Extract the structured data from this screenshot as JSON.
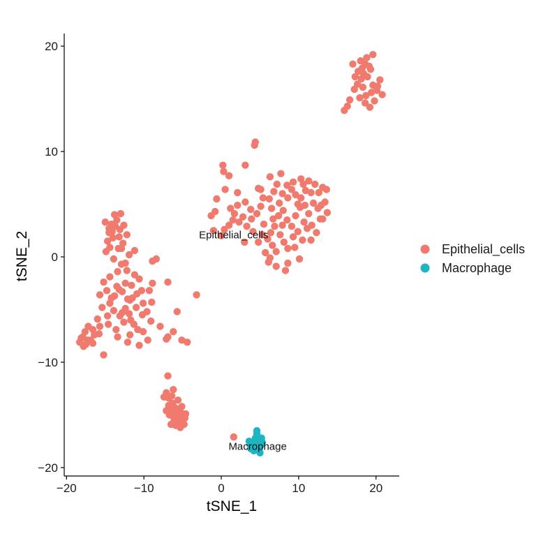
{
  "chart_data": {
    "type": "scatter",
    "title": "",
    "xlabel": "tSNE_1",
    "ylabel": "tSNE_2",
    "xlim": [
      -20.3,
      23
    ],
    "ylim": [
      -20.8,
      21.2
    ],
    "xticks": [
      -20,
      -10,
      0,
      10,
      20
    ],
    "yticks": [
      -20,
      -10,
      0,
      10,
      20
    ],
    "xtick_labels": [
      "−20",
      "−10",
      "0",
      "10",
      "20"
    ],
    "ytick_labels": [
      "−20",
      "−10",
      "0",
      "10",
      "20"
    ],
    "grid": false,
    "legend_position": "right",
    "series": [
      {
        "name": "Epithelial_cells",
        "color": "#F07A6E",
        "points": [
          [
            15.9,
            13.9
          ],
          [
            16.3,
            14.3
          ],
          [
            16.6,
            14.9
          ],
          [
            17.2,
            15.9
          ],
          [
            17.6,
            16.4
          ],
          [
            18.1,
            16.9
          ],
          [
            18.4,
            17.4
          ],
          [
            18.9,
            17.1
          ],
          [
            19.3,
            17.8
          ],
          [
            18.6,
            18.3
          ],
          [
            18.0,
            18.6
          ],
          [
            18.8,
            18.9
          ],
          [
            19.6,
            19.2
          ],
          [
            19.1,
            18.1
          ],
          [
            17.7,
            17.6
          ],
          [
            18.3,
            16.1
          ],
          [
            18.7,
            15.3
          ],
          [
            19.4,
            15.6
          ],
          [
            20.1,
            15.8
          ],
          [
            20.5,
            16.8
          ],
          [
            20.8,
            15.4
          ],
          [
            19.8,
            14.8
          ],
          [
            19.2,
            14.2
          ],
          [
            18.6,
            14.6
          ],
          [
            17.9,
            15.1
          ],
          [
            17.3,
            17.1
          ],
          [
            18.2,
            17.9
          ],
          [
            19.6,
            16.3
          ],
          [
            17.0,
            18.3
          ],
          [
            20.2,
            16.2
          ],
          [
            -1.0,
            2.5
          ],
          [
            0.0,
            2.0
          ],
          [
            0.4,
            2.6
          ],
          [
            1.0,
            3.0
          ],
          [
            1.5,
            3.5
          ],
          [
            -1.3,
            3.9
          ],
          [
            -0.8,
            4.3
          ],
          [
            1.2,
            4.6
          ],
          [
            2.1,
            4.9
          ],
          [
            3.1,
            5.2
          ],
          [
            3.8,
            4.5
          ],
          [
            2.8,
            3.8
          ],
          [
            2.3,
            3.3
          ],
          [
            1.7,
            4.1
          ],
          [
            -0.6,
            5.5
          ],
          [
            0.5,
            6.4
          ],
          [
            2.1,
            6.1
          ],
          [
            0.2,
            8.7
          ],
          [
            0.3,
            8.1
          ],
          [
            1.0,
            7.7
          ],
          [
            3.1,
            8.7
          ],
          [
            4.3,
            10.6
          ],
          [
            4.4,
            10.9
          ],
          [
            5.1,
            6.4
          ],
          [
            5.4,
            5.6
          ],
          [
            6.2,
            5.5
          ],
          [
            6.8,
            6.2
          ],
          [
            7.2,
            6.9
          ],
          [
            7.7,
            7.9
          ],
          [
            6.3,
            7.6
          ],
          [
            8.5,
            6.8
          ],
          [
            9.1,
            6.4
          ],
          [
            9.6,
            5.9
          ],
          [
            10.3,
            5.6
          ],
          [
            10.9,
            6.3
          ],
          [
            11.3,
            7.2
          ],
          [
            12.1,
            6.9
          ],
          [
            12.6,
            6.1
          ],
          [
            13.1,
            6.6
          ],
          [
            13.4,
            5.2
          ],
          [
            13.7,
            4.2
          ],
          [
            13.1,
            3.6
          ],
          [
            12.5,
            4.6
          ],
          [
            11.9,
            5.1
          ],
          [
            11.3,
            4.1
          ],
          [
            10.7,
            3.3
          ],
          [
            10.2,
            4.7
          ],
          [
            9.6,
            3.9
          ],
          [
            9.1,
            2.9
          ],
          [
            8.5,
            3.5
          ],
          [
            8.0,
            4.4
          ],
          [
            7.4,
            3.9
          ],
          [
            6.9,
            2.9
          ],
          [
            6.4,
            2.3
          ],
          [
            6.0,
            1.7
          ],
          [
            6.6,
            1.1
          ],
          [
            7.1,
            0.5
          ],
          [
            6.3,
            -0.1
          ],
          [
            7.6,
            2.1
          ],
          [
            8.1,
            1.4
          ],
          [
            8.6,
            0.8
          ],
          [
            9.3,
            1.9
          ],
          [
            9.9,
            2.4
          ],
          [
            10.5,
            1.6
          ],
          [
            11.1,
            2.7
          ],
          [
            11.7,
            3.0
          ],
          [
            12.3,
            2.3
          ],
          [
            9.5,
            0.9
          ],
          [
            10.1,
            -0.2
          ],
          [
            8.6,
            -0.6
          ],
          [
            7.1,
            -0.9
          ],
          [
            8.3,
            -1.3
          ],
          [
            5.3,
            2.1
          ],
          [
            4.8,
            1.4
          ],
          [
            5.7,
            0.4
          ],
          [
            6.1,
            -0.5
          ],
          [
            5.5,
            3.1
          ],
          [
            6.7,
            3.6
          ],
          [
            7.5,
            5.1
          ],
          [
            8.6,
            5.6
          ],
          [
            9.3,
            7.1
          ],
          [
            10.6,
            6.9
          ],
          [
            11.6,
            6.1
          ],
          [
            12.9,
            4.9
          ],
          [
            3.3,
            2.9
          ],
          [
            3.9,
            3.6
          ],
          [
            4.6,
            4.1
          ],
          [
            5.1,
            4.8
          ],
          [
            7.9,
            6.0
          ],
          [
            10.8,
            4.9
          ],
          [
            4.1,
            2.4
          ],
          [
            6.5,
            4.6
          ],
          [
            11.6,
            1.6
          ],
          [
            12.8,
            3.6
          ],
          [
            3.0,
            1.4
          ],
          [
            9.9,
            5.0
          ],
          [
            10.3,
            7.4
          ],
          [
            13.6,
            6.4
          ],
          [
            4.8,
            6.5
          ],
          [
            7.9,
            3.0
          ],
          [
            -14.0,
            1.8
          ],
          [
            -14.5,
            2.3
          ],
          [
            -13.7,
            2.9
          ],
          [
            -13.1,
            2.6
          ],
          [
            -14.7,
            1.5
          ],
          [
            -13.5,
            3.5
          ],
          [
            -14.2,
            3.1
          ],
          [
            -13.0,
            4.1
          ],
          [
            -12.2,
            2.1
          ],
          [
            -12.7,
            1.3
          ],
          [
            -13.3,
            0.8
          ],
          [
            -14.9,
            0.5
          ],
          [
            -13.9,
            -0.2
          ],
          [
            -12.9,
            -0.7
          ],
          [
            -13.4,
            -1.4
          ],
          [
            -14.4,
            -1.9
          ],
          [
            -15.2,
            -2.4
          ],
          [
            -14.8,
            -3.2
          ],
          [
            -13.8,
            -3.7
          ],
          [
            -12.8,
            -3.3
          ],
          [
            -12.4,
            -2.5
          ],
          [
            -11.6,
            -2.7
          ],
          [
            -11.2,
            -1.7
          ],
          [
            -10.6,
            -2.1
          ],
          [
            -10.3,
            -3.2
          ],
          [
            -11.8,
            -4.1
          ],
          [
            -12.4,
            -4.9
          ],
          [
            -13.1,
            -5.6
          ],
          [
            -13.9,
            -5.1
          ],
          [
            -14.4,
            -4.4
          ],
          [
            -15.4,
            -4.8
          ],
          [
            -16.0,
            -5.9
          ],
          [
            -15.7,
            -6.6
          ],
          [
            -16.6,
            -6.9
          ],
          [
            -17.2,
            -6.6
          ],
          [
            -17.6,
            -7.1
          ],
          [
            -17.9,
            -7.6
          ],
          [
            -18.3,
            -8.1
          ],
          [
            -17.5,
            -8.3
          ],
          [
            -16.9,
            -7.9
          ],
          [
            -16.4,
            -7.4
          ],
          [
            -17.3,
            -7.9
          ],
          [
            -15.2,
            -9.3
          ],
          [
            -14.6,
            -6.4
          ],
          [
            -13.6,
            -6.9
          ],
          [
            -12.6,
            -6.2
          ],
          [
            -11.9,
            -5.4
          ],
          [
            -11.3,
            -6.4
          ],
          [
            -11.8,
            -7.4
          ],
          [
            -10.8,
            -6.9
          ],
          [
            -10.1,
            -7.1
          ],
          [
            -9.5,
            -7.9
          ],
          [
            -10.6,
            -8.4
          ],
          [
            -9.1,
            -6.1
          ],
          [
            -9.6,
            -5.2
          ],
          [
            -10.1,
            -4.4
          ],
          [
            -9.0,
            -4.3
          ],
          [
            -7.9,
            -6.6
          ],
          [
            -6.9,
            -7.6
          ],
          [
            -7.1,
            -7.8
          ],
          [
            -6.2,
            -7.1
          ],
          [
            -5.1,
            -7.9
          ],
          [
            -4.4,
            -8.1
          ],
          [
            -5.7,
            -5.2
          ],
          [
            -3.2,
            -3.6
          ],
          [
            -6.9,
            -2.4
          ],
          [
            -8.9,
            -0.4
          ],
          [
            -8.4,
            -0.2
          ],
          [
            -8.9,
            -2.5
          ],
          [
            -11.9,
            0.2
          ],
          [
            -12.4,
            -0.6
          ],
          [
            -12.9,
            0.8
          ],
          [
            -11.5,
            -3.9
          ],
          [
            -12.2,
            -1.3
          ],
          [
            -13.5,
            -2.8
          ],
          [
            -14.2,
            -3.9
          ],
          [
            -15.7,
            -3.6
          ],
          [
            -14.7,
            -5.6
          ],
          [
            -13.4,
            -7.6
          ],
          [
            -12.1,
            -8.1
          ],
          [
            -11.7,
            -6.0
          ],
          [
            -10.2,
            -5.5
          ],
          [
            -9.3,
            -3.2
          ],
          [
            -10.9,
            -3.5
          ],
          [
            -11.2,
            0.6
          ],
          [
            -12.6,
            3.0
          ],
          [
            -14.5,
            2.7
          ],
          [
            -15.0,
            3.3
          ],
          [
            -13.8,
            4.0
          ],
          [
            -14.1,
            2.4
          ],
          [
            -13.2,
            1.9
          ],
          [
            -14.4,
            0.9
          ],
          [
            -12.1,
            -4.0
          ],
          [
            -12.8,
            -5.3
          ],
          [
            -13.2,
            -3.1
          ],
          [
            -11.0,
            -4.8
          ],
          [
            -15.8,
            -7.3
          ],
          [
            -17.8,
            -8.5
          ],
          [
            -18.1,
            -7.7
          ],
          [
            -16.6,
            -8.2
          ],
          [
            -6.9,
            -11.3
          ],
          [
            -7.1,
            -12.9
          ],
          [
            -6.8,
            -13.4
          ],
          [
            -6.3,
            -13.9
          ],
          [
            -6.6,
            -14.5
          ],
          [
            -5.9,
            -14.9
          ],
          [
            -5.4,
            -15.2
          ],
          [
            -4.9,
            -15.4
          ],
          [
            -5.6,
            -15.7
          ],
          [
            -6.1,
            -15.4
          ],
          [
            -6.7,
            -15.0
          ],
          [
            -7.1,
            -14.6
          ],
          [
            -6.2,
            -12.6
          ],
          [
            -5.6,
            -13.6
          ],
          [
            -5.1,
            -14.2
          ],
          [
            -4.6,
            -14.9
          ],
          [
            -5.9,
            -16.0
          ],
          [
            -6.5,
            -15.9
          ],
          [
            -5.3,
            -16.2
          ],
          [
            -4.8,
            -15.9
          ],
          [
            -6.8,
            -14.1
          ],
          [
            -6.0,
            -14.3
          ],
          [
            -5.2,
            -14.8
          ],
          [
            -7.4,
            -13.3
          ],
          [
            -6.4,
            -13.2
          ],
          [
            -5.8,
            -15.6
          ],
          [
            -4.7,
            -15.3
          ],
          [
            -5.5,
            -14.6
          ],
          [
            1.6,
            -17.1
          ]
        ]
      },
      {
        "name": "Macrophage",
        "color": "#1EB5C3",
        "points": [
          [
            4.1,
            -17.6
          ],
          [
            4.4,
            -17.2
          ],
          [
            4.6,
            -16.8
          ],
          [
            4.8,
            -17.4
          ],
          [
            5.1,
            -17.9
          ],
          [
            4.9,
            -18.3
          ],
          [
            4.4,
            -18.1
          ],
          [
            3.9,
            -17.9
          ],
          [
            3.6,
            -17.5
          ],
          [
            4.3,
            -17.9
          ],
          [
            5.3,
            -17.6
          ],
          [
            5.0,
            -18.6
          ],
          [
            4.7,
            -18.0
          ],
          [
            4.2,
            -18.4
          ],
          [
            3.8,
            -18.2
          ],
          [
            4.5,
            -17.5
          ],
          [
            5.2,
            -17.2
          ],
          [
            4.6,
            -16.5
          ],
          [
            3.7,
            -17.8
          ],
          [
            4.9,
            -17.7
          ]
        ]
      }
    ],
    "annotations": [
      {
        "text": "Epithelial_cells",
        "x": 1.6,
        "y": 2.1
      },
      {
        "text": "Macrophage",
        "x": 4.7,
        "y": -18.0
      }
    ]
  }
}
